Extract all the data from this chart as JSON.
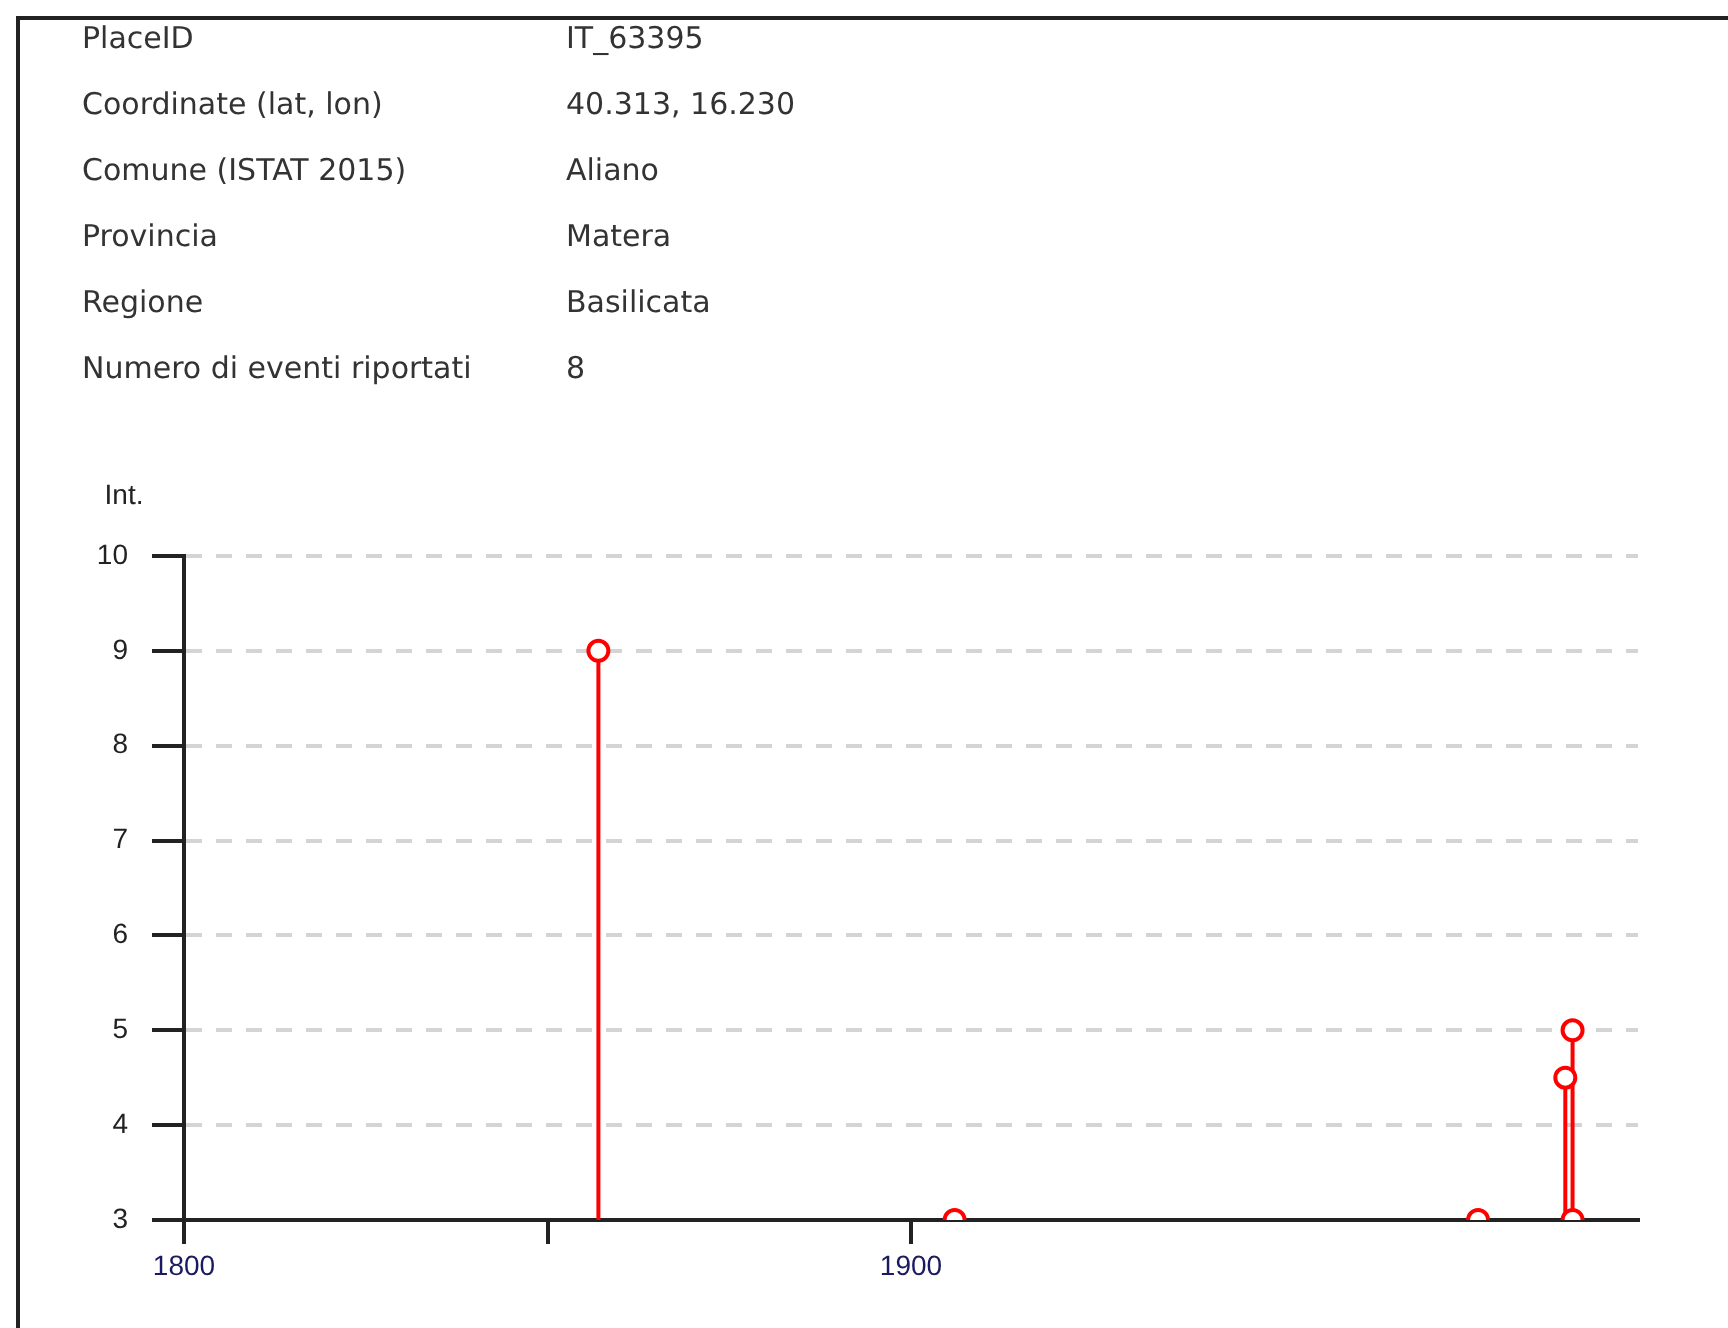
{
  "chart_data": [
    {
      "type": "other",
      "annotations": [
        "PlaceID",
        "IT_63395",
        "Coordinate (lat, lon)",
        "40.313, 16.230",
        "Comune (ISTAT 2015)",
        "Aliano",
        "Provincia",
        "Matera",
        "Regione",
        "Basilicata",
        "Numero di eventi riportati",
        "8"
      ]
    },
    {
      "type": "lollipop",
      "ylabel": "Int.",
      "x": [
        1857,
        1906,
        1978,
        1990,
        1991,
        1991
      ],
      "series": [
        {
          "color": "#ff0000",
          "values": [
            9,
            3,
            3,
            4.5,
            5,
            3
          ]
        }
      ],
      "xlim": [
        1800,
        2000
      ],
      "xticks": [
        1800,
        {
          "value": 1850,
          "label": null
        },
        1900
      ],
      "ylim": [
        3,
        10
      ],
      "yticks": [
        3,
        4,
        5,
        6,
        7,
        8,
        9,
        10
      ],
      "grid": "y",
      "marker": "circle",
      "legend": false
    }
  ]
}
